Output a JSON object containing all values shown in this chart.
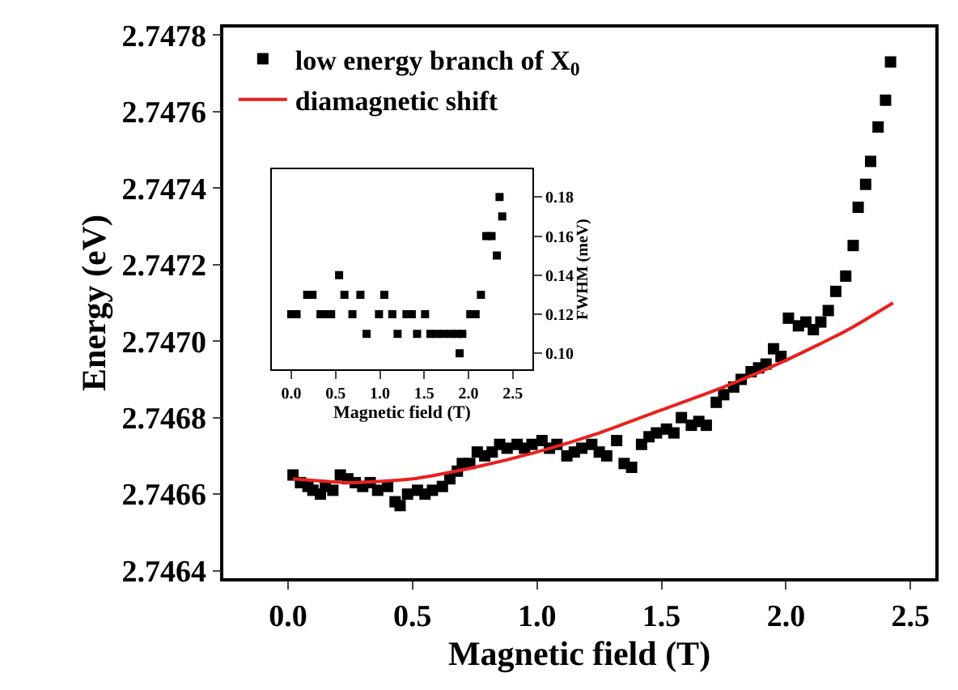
{
  "chart_data": [
    {
      "type": "scatter",
      "xlabel": "Magnetic field (T)",
      "ylabel": "Energy (eV)",
      "marker": "square",
      "legend": "top left",
      "xlim": [
        -0.26,
        2.6
      ],
      "xticks": [
        {
          "value": 0,
          "label": "0.0"
        },
        0.5,
        {
          "value": 1,
          "label": "1.0"
        },
        1.5,
        {
          "value": 2,
          "label": "2.0"
        },
        2.5
      ],
      "ylim": [
        2.74638,
        2.74782
      ],
      "yticks": [
        2.7464,
        2.7466,
        2.7468,
        {
          "value": 2.747,
          "label": "2.7470"
        },
        2.7472,
        2.7474,
        2.7476,
        2.7478
      ],
      "series": [
        {
          "name": "low energy branch of X$_{0}$",
          "color": "#000000",
          "x": [
            0.02,
            0.05,
            0.08,
            0.1,
            0.13,
            0.15,
            0.18,
            0.21,
            0.24,
            0.27,
            0.3,
            0.33,
            0.36,
            0.4,
            0.43,
            0.45,
            0.48,
            0.52,
            0.55,
            0.58,
            0.62,
            0.65,
            0.68,
            0.7,
            0.73,
            0.76,
            0.79,
            0.82,
            0.85,
            0.88,
            0.92,
            0.95,
            0.98,
            1.02,
            1.05,
            1.08,
            1.12,
            1.15,
            1.18,
            1.22,
            1.25,
            1.28,
            1.32,
            1.35,
            1.38,
            1.42,
            1.45,
            1.48,
            1.52,
            1.55,
            1.58,
            1.62,
            1.65,
            1.68,
            1.72,
            1.75,
            1.79,
            1.82,
            1.86,
            1.89,
            1.92,
            1.95,
            1.98,
            2.01,
            2.05,
            2.08,
            2.11,
            2.14,
            2.17,
            2.2,
            2.24,
            2.27,
            2.29,
            2.32,
            2.34,
            2.37,
            2.4,
            2.42
          ],
          "values": [
            2.74665,
            2.74663,
            2.74662,
            2.74661,
            2.7466,
            2.74662,
            2.74661,
            2.74665,
            2.74664,
            2.74663,
            2.74662,
            2.74663,
            2.74661,
            2.74662,
            2.74658,
            2.74657,
            2.7466,
            2.74661,
            2.7466,
            2.74661,
            2.74662,
            2.74664,
            2.74666,
            2.74668,
            2.74668,
            2.74671,
            2.7467,
            2.74671,
            2.74673,
            2.74672,
            2.74673,
            2.74672,
            2.74673,
            2.74674,
            2.74672,
            2.74673,
            2.7467,
            2.74671,
            2.74672,
            2.74673,
            2.74671,
            2.7467,
            2.74674,
            2.74668,
            2.74667,
            2.74673,
            2.74675,
            2.74676,
            2.74677,
            2.74676,
            2.7468,
            2.74678,
            2.74679,
            2.74678,
            2.74684,
            2.74686,
            2.74688,
            2.7469,
            2.74692,
            2.74693,
            2.74694,
            2.74698,
            2.74696,
            2.74706,
            2.74704,
            2.74705,
            2.74703,
            2.74705,
            2.74708,
            2.74713,
            2.74717,
            2.74725,
            2.74735,
            2.74741,
            2.74747,
            2.74756,
            2.74763,
            2.74773
          ]
        },
        {
          "name": "diamagnetic shift",
          "type": "line",
          "color": "#e8221f",
          "marker": "none",
          "x": [
            0.02,
            0.25,
            0.5,
            0.75,
            1.0,
            1.25,
            1.5,
            1.75,
            2.0,
            2.25,
            2.43
          ],
          "values": [
            2.74664,
            2.74663,
            2.74664,
            2.74667,
            2.74671,
            2.74676,
            2.74682,
            2.74688,
            2.74695,
            2.74703,
            2.7471
          ]
        }
      ]
    },
    {
      "type": "scatter",
      "xlabel": "Magnetic field (T)",
      "ylabel": "FWHM (meV)",
      "marker": "square",
      "xlim": [
        -0.22,
        2.72
      ],
      "xticks": [
        {
          "value": 0,
          "label": "0.0"
        },
        0.5,
        {
          "value": 1,
          "label": "1.0"
        },
        1.5,
        {
          "value": 2,
          "label": "2.0"
        },
        2.5
      ],
      "ylim": [
        0.092,
        0.194
      ],
      "yticks": [
        {
          "value": 0.1,
          "label": "0.10"
        },
        0.12,
        0.14,
        0.16,
        0.18
      ],
      "series": [
        {
          "color": "#000000",
          "x": [
            0.0,
            0.06,
            0.18,
            0.24,
            0.33,
            0.39,
            0.45,
            0.54,
            0.6,
            0.69,
            0.78,
            0.85,
            0.99,
            1.05,
            1.14,
            1.2,
            1.3,
            1.36,
            1.42,
            1.51,
            1.57,
            1.64,
            1.72,
            1.8,
            1.87,
            1.9,
            1.93,
            2.02,
            2.08,
            2.14,
            2.2,
            2.26,
            2.32,
            2.35,
            2.38
          ],
          "values": [
            0.12,
            0.12,
            0.13,
            0.13,
            0.12,
            0.12,
            0.12,
            0.14,
            0.13,
            0.12,
            0.13,
            0.11,
            0.12,
            0.13,
            0.12,
            0.11,
            0.12,
            0.12,
            0.11,
            0.12,
            0.11,
            0.11,
            0.11,
            0.11,
            0.11,
            0.1,
            0.11,
            0.12,
            0.12,
            0.13,
            0.16,
            0.16,
            0.15,
            0.18,
            0.17
          ]
        }
      ]
    }
  ]
}
